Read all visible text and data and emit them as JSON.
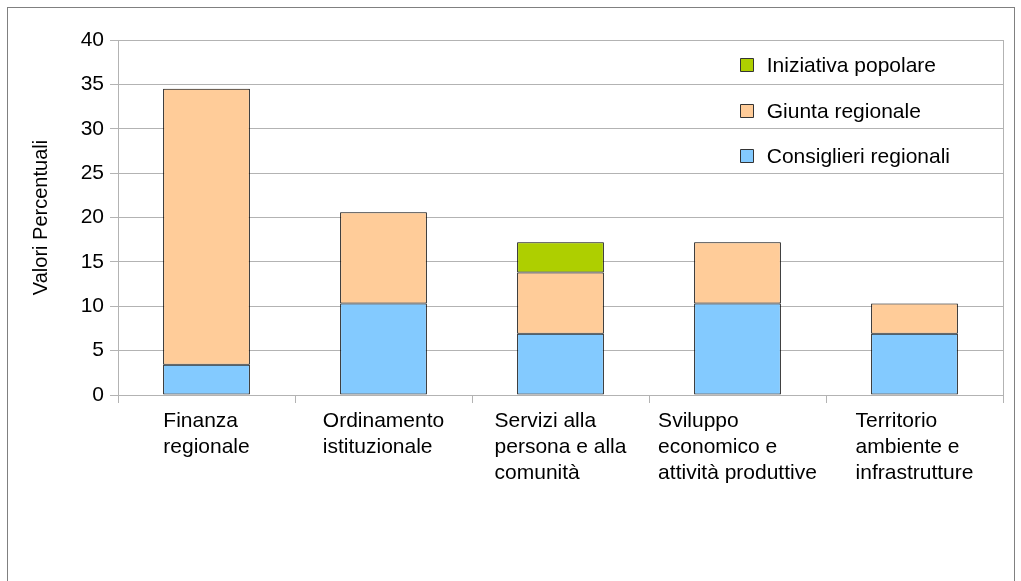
{
  "chart_data": {
    "type": "bar",
    "stacked": true,
    "ylabel": "Valori Percentuali",
    "categories": [
      "Finanza regionale",
      "Ordinamento istituzionale",
      "Servizi alla persona e alla comunità",
      "Sviluppo economico e attività produttive",
      "Territorio ambiente e infrastrutture"
    ],
    "series": [
      {
        "name": "Consiglieri regionali",
        "color": "#83caff",
        "values": [
          3.4,
          10.3,
          6.9,
          10.3,
          6.9
        ]
      },
      {
        "name": "Giunta regionale",
        "color": "#ffcc99",
        "values": [
          31.1,
          10.3,
          6.9,
          6.9,
          3.4
        ]
      },
      {
        "name": "Iniziativa popolare",
        "color": "#aecf00",
        "values": [
          null,
          null,
          3.4,
          null,
          null
        ]
      }
    ],
    "ylim": [
      0,
      40
    ],
    "yticks": [
      0,
      5,
      10,
      15,
      20,
      25,
      30,
      35,
      40
    ],
    "grid": "y",
    "legend": "top right"
  }
}
